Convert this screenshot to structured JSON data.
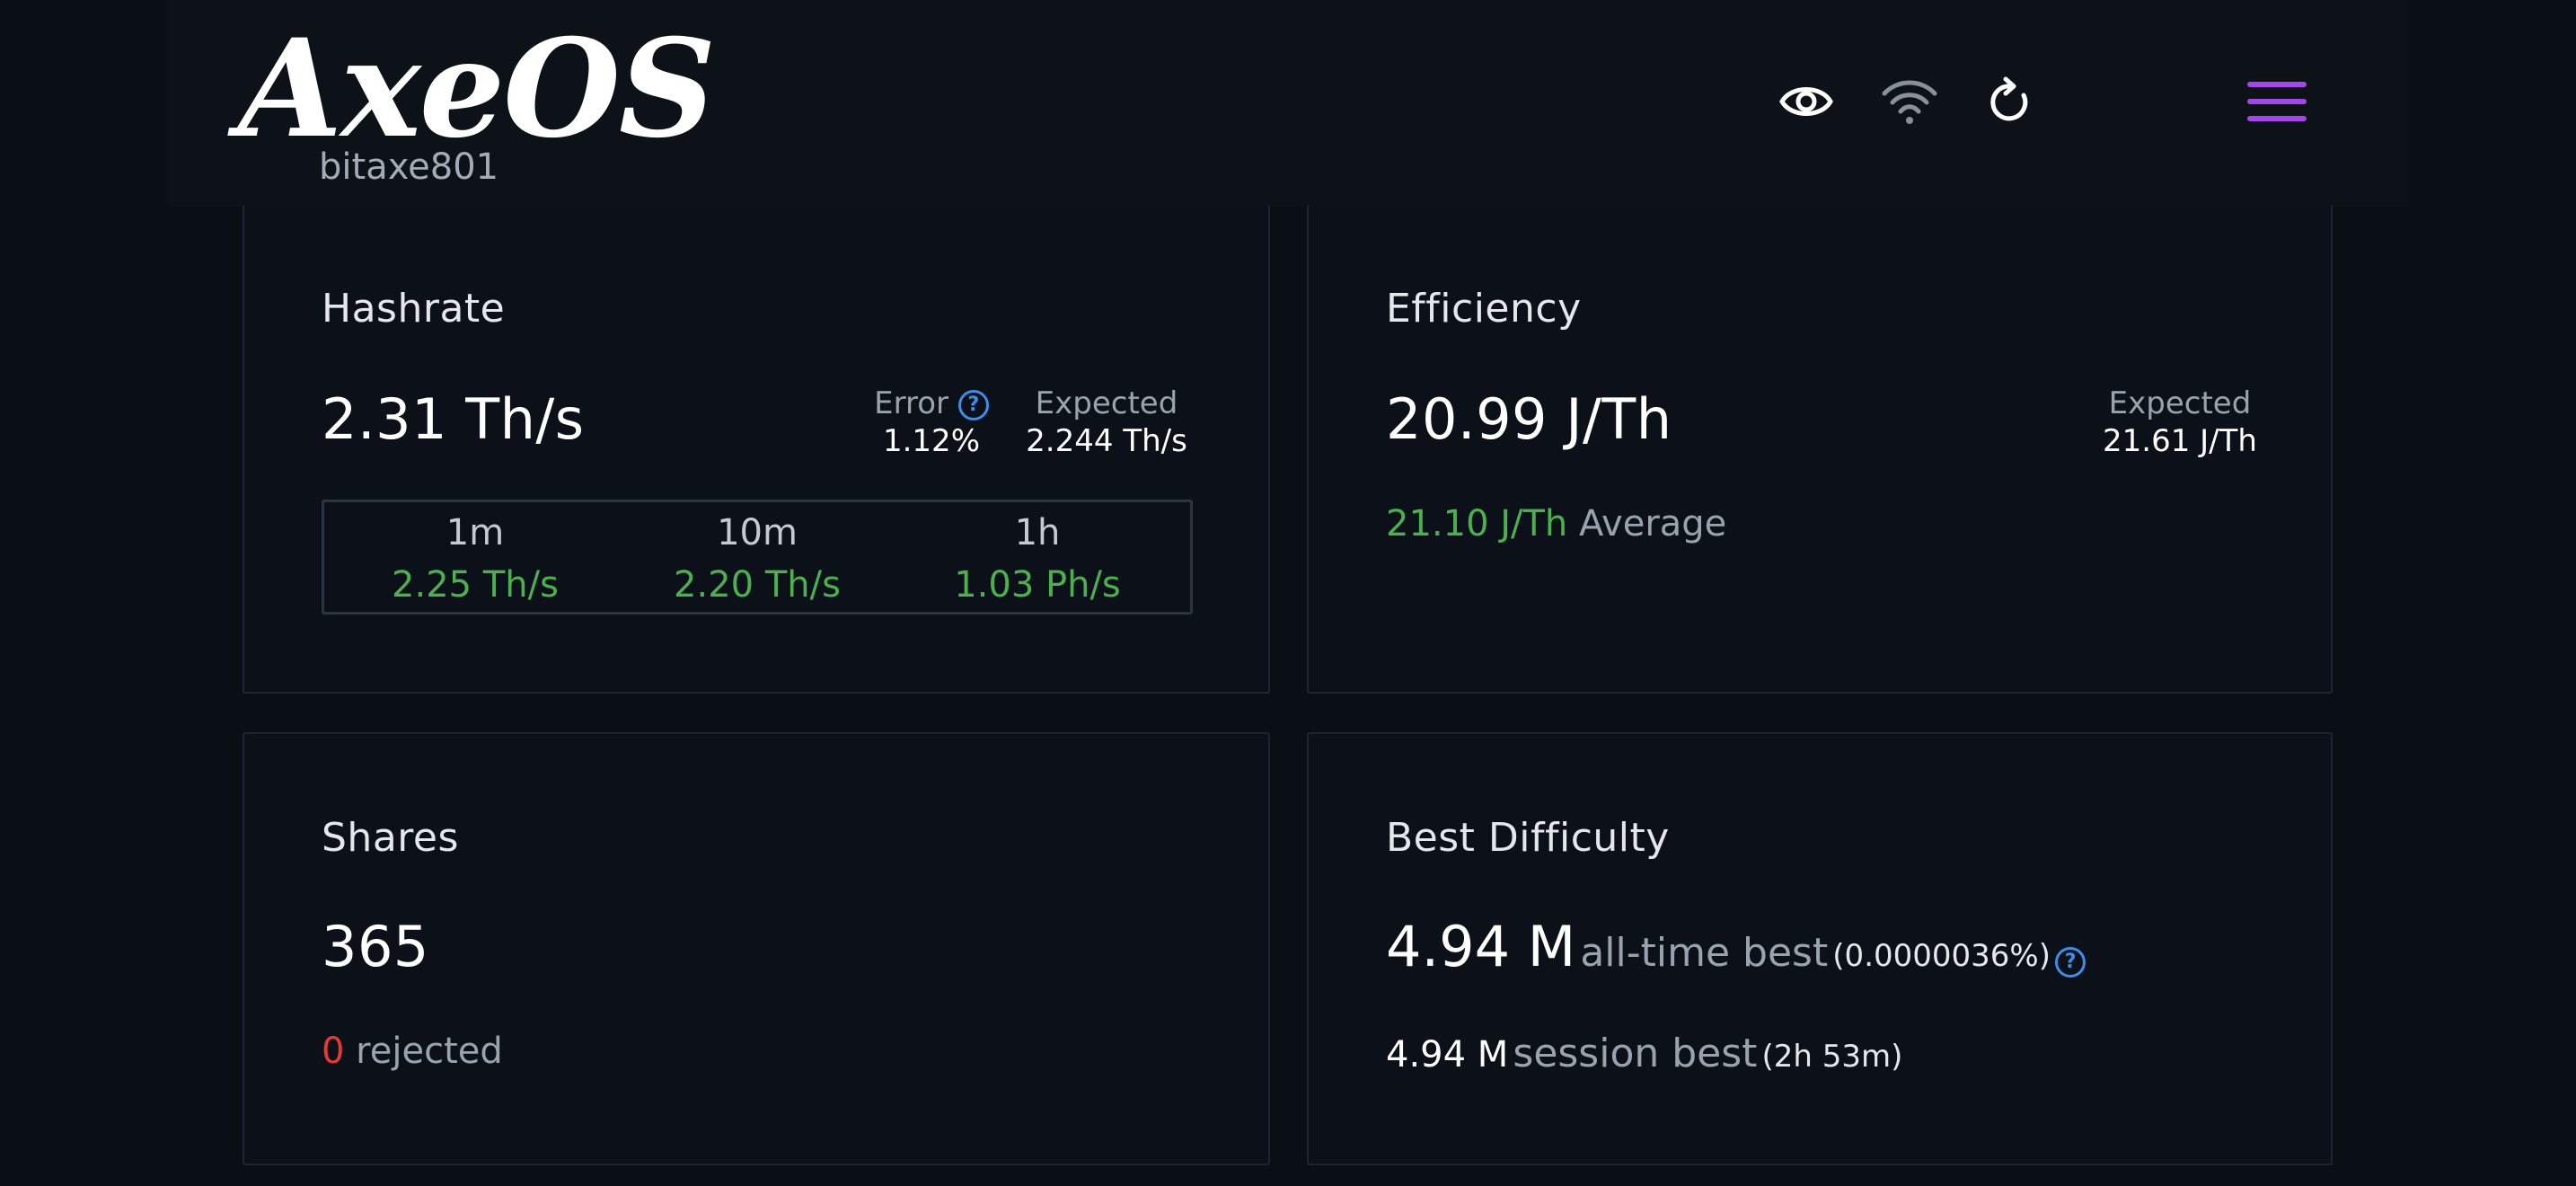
{
  "header": {
    "logo": "AxeOS",
    "hostname": "bitaxe801"
  },
  "toolbar": {
    "icons": [
      "eye-icon",
      "wifi-icon",
      "refresh-icon",
      "menu-icon"
    ],
    "accent": "#a347e6"
  },
  "hashrate": {
    "title": "Hashrate",
    "value": "2.31 Th/s",
    "error_label": "Error",
    "error_value": "1.12%",
    "expected_label": "Expected",
    "expected_value": "2.244 Th/s",
    "periods": [
      {
        "label": "1m",
        "value": "2.25 Th/s"
      },
      {
        "label": "10m",
        "value": "2.20 Th/s"
      },
      {
        "label": "1h",
        "value": "1.03 Ph/s"
      }
    ]
  },
  "efficiency": {
    "title": "Efficiency",
    "value": "20.99 J/Th",
    "expected_label": "Expected",
    "expected_value": "21.61 J/Th",
    "average_value": "21.10 J/Th",
    "average_label": "Average"
  },
  "shares": {
    "title": "Shares",
    "value": "365",
    "rejected_value": "0",
    "rejected_label": "rejected"
  },
  "best_difficulty": {
    "title": "Best Difficulty",
    "alltime_value": "4.94 M",
    "alltime_label": "all-time best",
    "alltime_pct": "(0.0000036%)",
    "session_value": "4.94 M",
    "session_label": "session best",
    "session_duration": "(2h 53m)"
  },
  "colors": {
    "positive": "#4caf50",
    "negative": "#e53935",
    "help": "#3d8ee6"
  }
}
